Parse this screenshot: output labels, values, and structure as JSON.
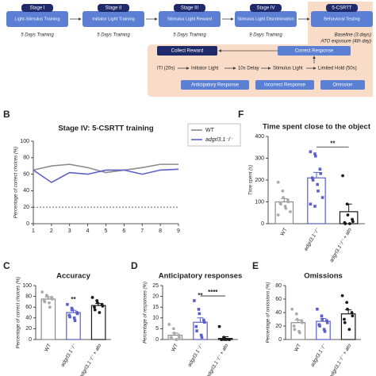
{
  "diagram": {
    "stages": [
      {
        "name": "Stage I",
        "label": "Light-Stimulus Training",
        "duration": "5 Days Training"
      },
      {
        "name": "Stage II",
        "label": "Initiator Light Training",
        "duration": "5 Days Training"
      },
      {
        "name": "Stage III",
        "label": "Stimulus Light Reward",
        "duration": "5 Days Training"
      },
      {
        "name": "Stage IV",
        "label": "Stimulus Light Discrimination",
        "duration": "9 Days Training"
      },
      {
        "name": "5-CSRTT",
        "label": "Behavioral Testing",
        "duration": "Baseline (3 days)",
        "note": "ATO exposure (4th day)"
      }
    ],
    "protocol": {
      "collect": "Collect Reward",
      "correct": "Correct Response",
      "sequence": [
        "ITI (20s)",
        "Initiator Light",
        "10s Delay",
        "Stimulus Light",
        "Limited Hold (50s)"
      ],
      "outcomes": [
        "Anticipatory Response",
        "Incorrect Response",
        "Omission"
      ]
    }
  },
  "chart_data": [
    {
      "type": "line",
      "panel": "B",
      "title": "Stage IV: 5-CSRTT training",
      "ylabel": "Percentage of correct choices (%)",
      "x": [
        1,
        2,
        3,
        4,
        5,
        6,
        7,
        8,
        9
      ],
      "xlim": [
        1,
        9
      ],
      "xticks": [
        1,
        2,
        3,
        4,
        5,
        6,
        7,
        8,
        9
      ],
      "ylim": [
        0,
        100
      ],
      "yticks": [
        0,
        20,
        40,
        60,
        80,
        100
      ],
      "reference_line": 20,
      "series": [
        {
          "name": "WT",
          "color": "#8c8c8c",
          "values": [
            65,
            70,
            72,
            68,
            62,
            65,
            68,
            72,
            72
          ]
        },
        {
          "name": "adgrl3.1⁻/⁻",
          "color": "#5b5fc7",
          "values": [
            65,
            50,
            62,
            60,
            65,
            65,
            60,
            65,
            66
          ]
        }
      ]
    },
    {
      "type": "bar",
      "panel": "C",
      "title": "Accuracy",
      "ylabel": "Percentage of correct choices (%)",
      "categories": [
        "WT",
        "adgrl3.1⁻/⁻",
        "adgrl3.1⁻/⁻ + ato"
      ],
      "colors": [
        "#8c8c8c",
        "#5b5fc7",
        "#1a1a1a"
      ],
      "values": [
        75,
        50,
        63
      ],
      "errors": [
        4,
        4,
        4
      ],
      "ylim": [
        0,
        100
      ],
      "yticks": [
        0,
        20,
        40,
        60,
        80,
        100
      ],
      "points": [
        [
          88,
          82,
          80,
          78,
          75,
          72,
          70,
          68,
          60
        ],
        [
          65,
          58,
          55,
          50,
          48,
          45,
          42,
          40,
          35
        ],
        [
          78,
          72,
          68,
          65,
          62,
          60,
          55,
          50
        ]
      ],
      "annotations": [
        {
          "text": "**",
          "over": [
            "adgrl3.1⁻/⁻"
          ]
        }
      ]
    },
    {
      "type": "bar",
      "panel": "D",
      "title": "Anticipatory responses",
      "ylabel": "Percentage of responses (%)",
      "categories": [
        "WT",
        "adgrl3.1⁻/⁻",
        "adgrl3.1⁻/⁻ + ato"
      ],
      "colors": [
        "#8c8c8c",
        "#5b5fc7",
        "#1a1a1a"
      ],
      "values": [
        2,
        8,
        0.5
      ],
      "errors": [
        1,
        2,
        0.8
      ],
      "ylim": [
        0,
        25
      ],
      "yticks": [
        0,
        5,
        10,
        15,
        20,
        25
      ],
      "points": [
        [
          7,
          5,
          3,
          2,
          1,
          1,
          0.5,
          0,
          0
        ],
        [
          18,
          14,
          12,
          9,
          8,
          6,
          4,
          2,
          1
        ],
        [
          6,
          1,
          0,
          0,
          0,
          0,
          0,
          0
        ]
      ],
      "annotations": [
        {
          "text": "**",
          "over": [
            "adgrl3.1⁻/⁻"
          ]
        },
        {
          "text": "****",
          "over": [
            "adgrl3.1⁻/⁻",
            "adgrl3.1⁻/⁻ + ato"
          ]
        }
      ]
    },
    {
      "type": "bar",
      "panel": "E",
      "title": "Omissions",
      "ylabel": "Percentage of omissions (%)",
      "categories": [
        "WT",
        "adgrl3.1⁻/⁻",
        "adgrl3.1⁻/⁻ + ato"
      ],
      "colors": [
        "#8c8c8c",
        "#5b5fc7",
        "#1a1a1a"
      ],
      "values": [
        25,
        27,
        38
      ],
      "errors": [
        4,
        4,
        6
      ],
      "ylim": [
        0,
        80
      ],
      "yticks": [
        0,
        20,
        40,
        60,
        80
      ],
      "points": [
        [
          45,
          38,
          30,
          28,
          25,
          20,
          15,
          12,
          10
        ],
        [
          45,
          35,
          30,
          28,
          25,
          22,
          20,
          15,
          12
        ],
        [
          65,
          55,
          45,
          40,
          35,
          30,
          25,
          15
        ]
      ],
      "annotations": []
    },
    {
      "type": "bar",
      "panel": "F",
      "title": "Time spent close to the object",
      "ylabel": "Time spent (s)",
      "categories": [
        "WT",
        "adgrl3.1⁻/⁻",
        "adgrl3.1⁻/⁻ + ato"
      ],
      "colors": [
        "#8c8c8c",
        "#5b5fc7",
        "#1a1a1a"
      ],
      "values": [
        100,
        210,
        55
      ],
      "errors": [
        15,
        25,
        35
      ],
      "ylim": [
        0,
        400
      ],
      "yticks": [
        0,
        100,
        200,
        300,
        400
      ],
      "points": [
        [
          190,
          150,
          120,
          110,
          100,
          95,
          90,
          80,
          70,
          55,
          40
        ],
        [
          330,
          320,
          310,
          250,
          230,
          210,
          200,
          180,
          150,
          120,
          90,
          80
        ],
        [
          220,
          90,
          40,
          20,
          10,
          5,
          0,
          0
        ]
      ],
      "annotations": [
        {
          "text": "**",
          "over": [
            "adgrl3.1⁻/⁻",
            "adgrl3.1⁻/⁻ + ato"
          ]
        }
      ]
    }
  ]
}
